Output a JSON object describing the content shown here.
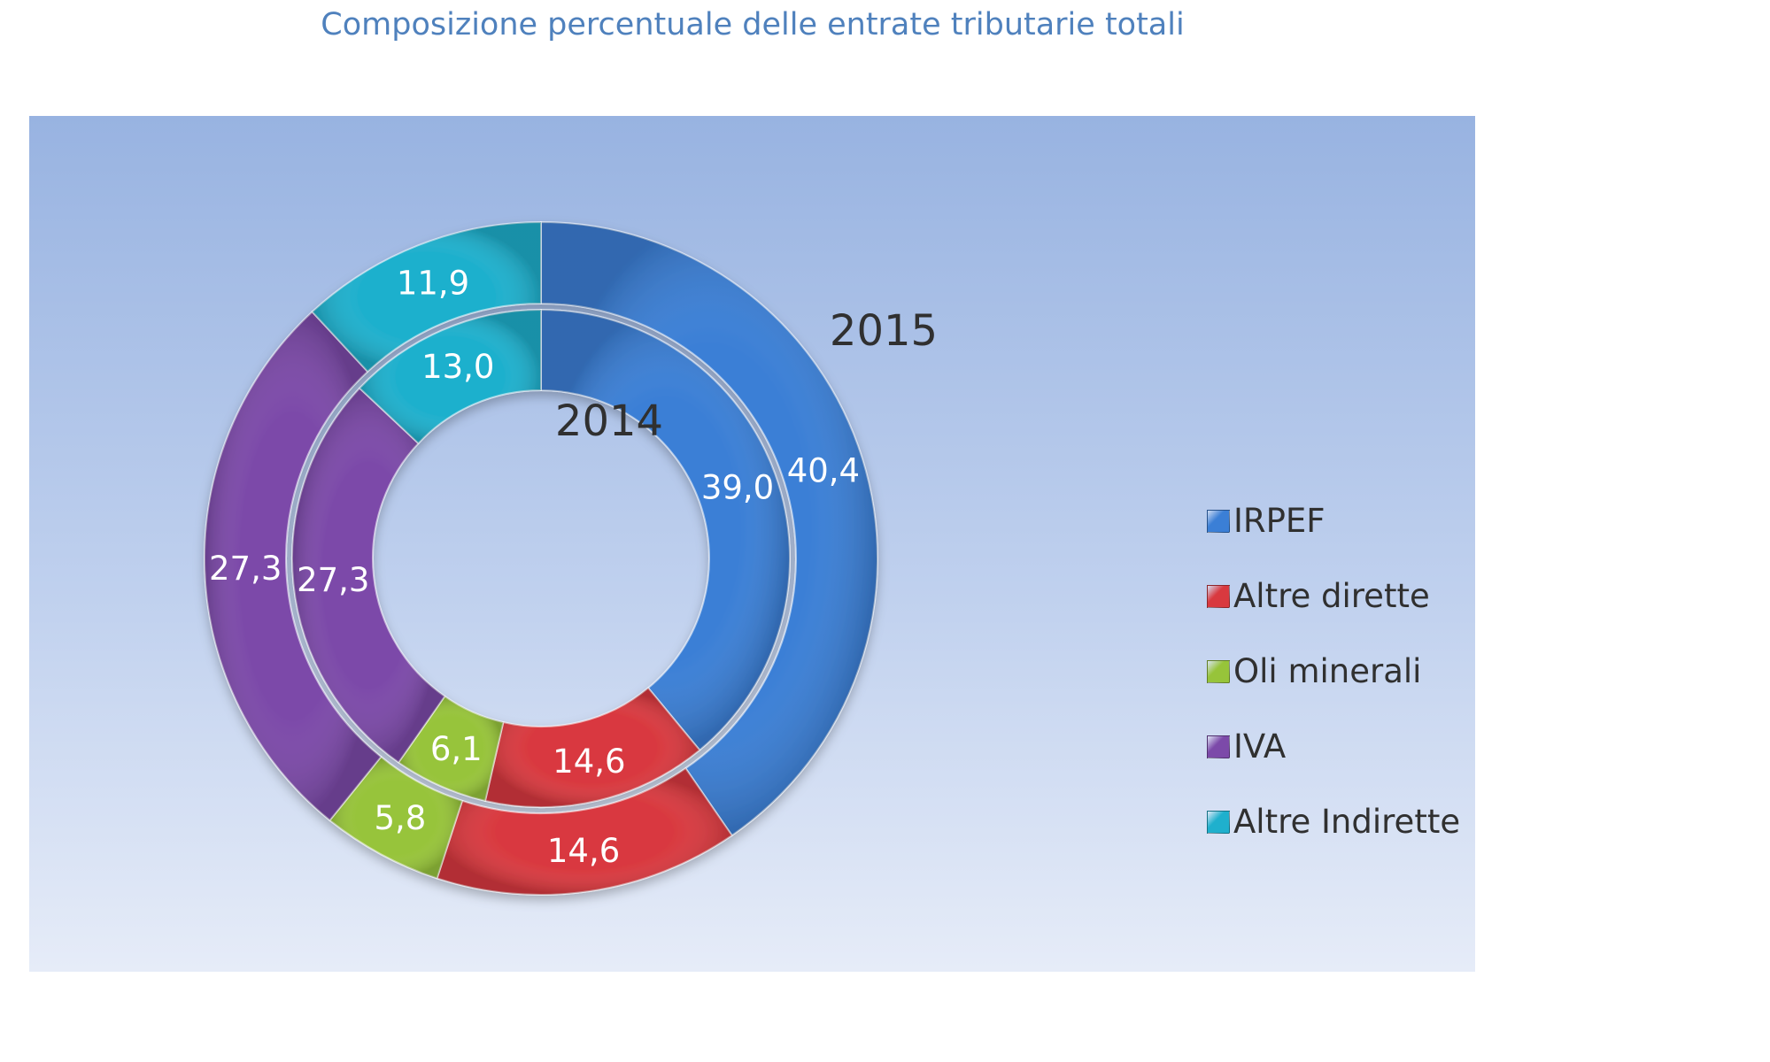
{
  "chart_data": {
    "type": "donut",
    "title": "Composizione percentuale delle entrate tributarie totali",
    "categories": [
      "IRPEF",
      "Altre dirette",
      "Oli minerali",
      "IVA",
      "Altre Indirette"
    ],
    "colors": [
      "#3b7fd6",
      "#d9393f",
      "#97c43a",
      "#7c4aa9",
      "#1fb0cd"
    ],
    "series": [
      {
        "name": "2014",
        "ring": "inner",
        "values": [
          39.0,
          14.6,
          6.1,
          27.3,
          13.0
        ],
        "labels": [
          "39,0",
          "14,6",
          "6,1",
          "27,3",
          "13,0"
        ]
      },
      {
        "name": "2015",
        "ring": "outer",
        "values": [
          40.4,
          14.6,
          5.8,
          27.3,
          11.9
        ],
        "labels": [
          "40,4",
          "14,6",
          "5,8",
          "27,3",
          "11,9"
        ]
      }
    ],
    "legend_position": "right"
  }
}
